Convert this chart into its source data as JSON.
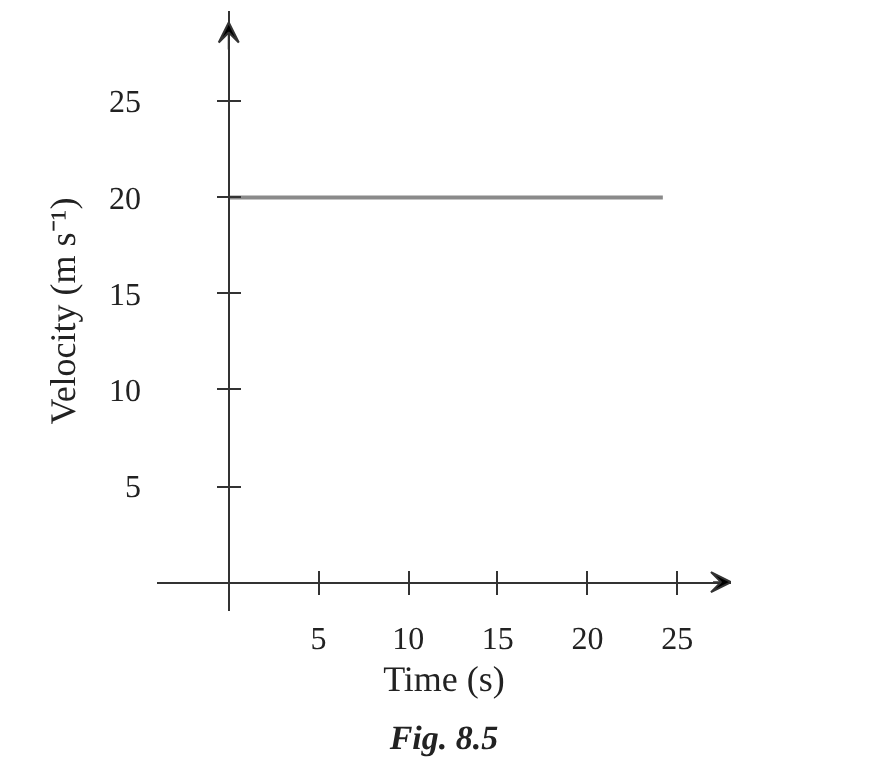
{
  "chart_data": {
    "type": "line",
    "xlabel": "Time (s)",
    "ylabel": "Velocity (m s⁻¹)",
    "x": [
      0,
      24.2
    ],
    "values": [
      20,
      20
    ],
    "color": "#8a8a8a",
    "xlim": [
      -4,
      28
    ],
    "ylim": [
      -1.5,
      29.7
    ],
    "xticks": [
      5,
      10,
      15,
      20,
      25
    ],
    "yticks": [
      5,
      10,
      15,
      20,
      25
    ],
    "grid": false,
    "annotations": [
      "Fig. 8.5"
    ]
  }
}
